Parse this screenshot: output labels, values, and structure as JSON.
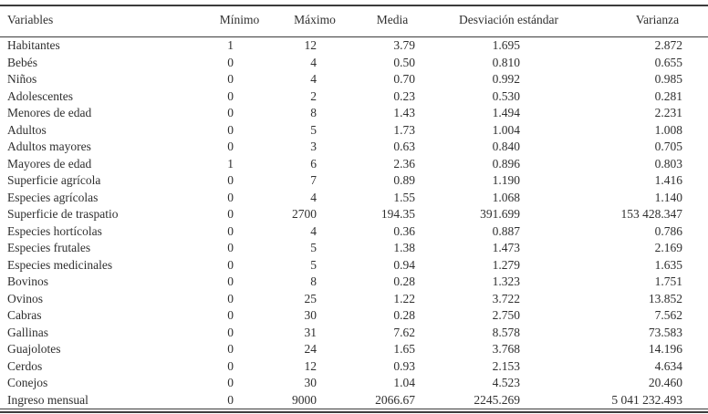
{
  "page": {
    "background": "#ffffff",
    "rule_color": "#3c3c3c",
    "text_color": "#2f2f2f"
  },
  "table": {
    "columns": [
      {
        "key": "variables",
        "label": "Variables"
      },
      {
        "key": "minimo",
        "label": "Mínimo"
      },
      {
        "key": "maximo",
        "label": "Máximo"
      },
      {
        "key": "media",
        "label": "Media"
      },
      {
        "key": "desviacion-estandar",
        "label": "Desviación estándar"
      },
      {
        "key": "varianza",
        "label": "Varianza"
      }
    ],
    "rows": [
      [
        "Habitantes",
        "1",
        "12",
        "3.79",
        "1.695",
        "2.872"
      ],
      [
        "Bebés",
        "0",
        "4",
        "0.50",
        "0.810",
        "0.655"
      ],
      [
        "Niños",
        "0",
        "4",
        "0.70",
        "0.992",
        "0.985"
      ],
      [
        "Adolescentes",
        "0",
        "2",
        "0.23",
        "0.530",
        "0.281"
      ],
      [
        "Menores de edad",
        "0",
        "8",
        "1.43",
        "1.494",
        "2.231"
      ],
      [
        "Adultos",
        "0",
        "5",
        "1.73",
        "1.004",
        "1.008"
      ],
      [
        "Adultos mayores",
        "0",
        "3",
        "0.63",
        "0.840",
        "0.705"
      ],
      [
        "Mayores de edad",
        "1",
        "6",
        "2.36",
        "0.896",
        "0.803"
      ],
      [
        "Superficie agrícola",
        "0",
        "7",
        "0.89",
        "1.190",
        "1.416"
      ],
      [
        "Especies agrícolas",
        "0",
        "4",
        "1.55",
        "1.068",
        "1.140"
      ],
      [
        "Superficie de traspatio",
        "0",
        "2700",
        "194.35",
        "391.699",
        "153 428.347"
      ],
      [
        "Especies hortícolas",
        "0",
        "4",
        "0.36",
        "0.887",
        "0.786"
      ],
      [
        "Especies frutales",
        "0",
        "5",
        "1.38",
        "1.473",
        "2.169"
      ],
      [
        "Especies medicinales",
        "0",
        "5",
        "0.94",
        "1.279",
        "1.635"
      ],
      [
        "Bovinos",
        "0",
        "8",
        "0.28",
        "1.323",
        "1.751"
      ],
      [
        "Ovinos",
        "0",
        "25",
        "1.22",
        "3.722",
        "13.852"
      ],
      [
        "Cabras",
        "0",
        "30",
        "0.28",
        "2.750",
        "7.562"
      ],
      [
        "Gallinas",
        "0",
        "31",
        "7.62",
        "8.578",
        "73.583"
      ],
      [
        "Guajolotes",
        "0",
        "24",
        "1.65",
        "3.768",
        "14.196"
      ],
      [
        "Cerdos",
        "0",
        "12",
        "0.93",
        "2.153",
        "4.634"
      ],
      [
        "Conejos",
        "0",
        "30",
        "1.04",
        "4.523",
        "20.460"
      ],
      [
        "Ingreso mensual",
        "0",
        "9000",
        "2066.67",
        "2245.269",
        "5 041 232.493"
      ]
    ]
  }
}
